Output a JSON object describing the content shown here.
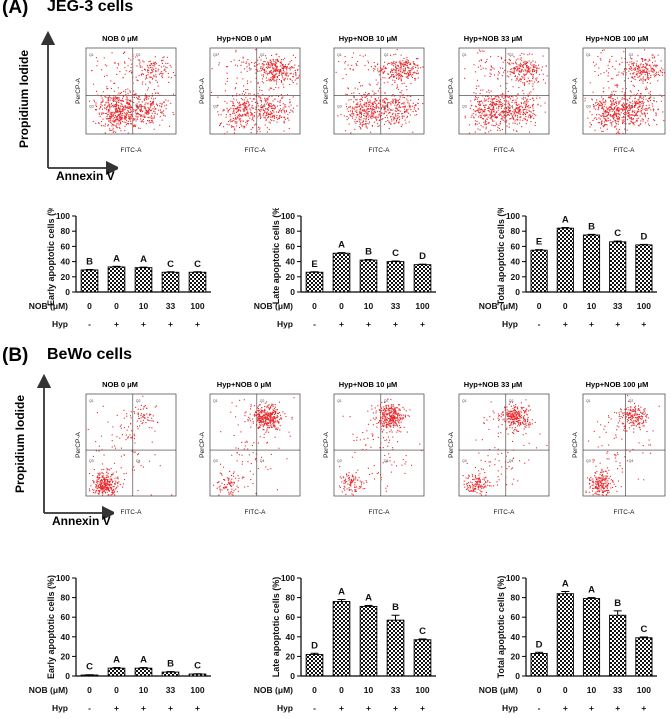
{
  "figure": {
    "panels": [
      {
        "letter": "(A)",
        "cell_line": "JEG-3 cells",
        "y_axis_name": "Propidium Iodide",
        "x_axis_name": "Annexin V",
        "flow_titles": [
          "NOB 0 μM",
          "Hyp+NOB 0 μM",
          "Hyp+NOB 10 μM",
          "Hyp+NOB 33 μM",
          "Hyp+NOB 100 μM"
        ],
        "flow_x_label": "FITC-A",
        "flow_y_label": "PerCP-A",
        "row_labels": {
          "nob": "NOB (μM)",
          "hyp": "Hyp"
        },
        "nob_values": [
          "0",
          "0",
          "10",
          "33",
          "100"
        ],
        "hyp_values": [
          "-",
          "+",
          "+",
          "+",
          "+"
        ]
      },
      {
        "letter": "(B)",
        "cell_line": "BeWo cells",
        "y_axis_name": "Propidium Iodide",
        "x_axis_name": "Annexin V",
        "flow_titles": [
          "NOB 0 μM",
          "Hyp+NOB 0 μM",
          "Hyp+NOB 10 μM",
          "Hyp+NOB 33 μM",
          "Hyp+NOB 100 μM"
        ],
        "flow_x_label": "FITC-A",
        "flow_y_label": "PerCP-A",
        "row_labels": {
          "nob": "NOB (μM)",
          "hyp": "Hyp"
        },
        "nob_values": [
          "0",
          "0",
          "10",
          "33",
          "100"
        ],
        "hyp_values": [
          "-",
          "+",
          "+",
          "+",
          "+"
        ]
      }
    ]
  },
  "chart_data": [
    {
      "type": "bar",
      "panel": "A",
      "ylabel": "Early apoptotic cells (%)",
      "ylim": [
        0,
        100
      ],
      "yticks": [
        "0",
        "20",
        "40",
        "60",
        "80",
        "100"
      ],
      "categories": [
        "0",
        "0",
        "10",
        "33",
        "100"
      ],
      "values": [
        29,
        33,
        32,
        26,
        26
      ],
      "errors": [
        0.6,
        0.8,
        0.7,
        0.6,
        0.6
      ],
      "letters": [
        "B",
        "A",
        "A",
        "C",
        "C"
      ]
    },
    {
      "type": "bar",
      "panel": "A",
      "ylabel": "Late apoptotic cells (%)",
      "ylim": [
        0,
        100
      ],
      "yticks": [
        "0",
        "20",
        "40",
        "60",
        "80",
        "100"
      ],
      "categories": [
        "0",
        "0",
        "10",
        "33",
        "100"
      ],
      "values": [
        26,
        51,
        42,
        40,
        36
      ],
      "errors": [
        0.6,
        0.8,
        0.7,
        0.8,
        0.6
      ],
      "letters": [
        "E",
        "A",
        "B",
        "C",
        "D"
      ]
    },
    {
      "type": "bar",
      "panel": "A",
      "ylabel": "Total apoptotic cells (%)",
      "ylim": [
        0,
        100
      ],
      "yticks": [
        "0",
        "20",
        "40",
        "60",
        "80",
        "100"
      ],
      "categories": [
        "0",
        "0",
        "10",
        "33",
        "100"
      ],
      "values": [
        55,
        84,
        75,
        66,
        62
      ],
      "errors": [
        0.7,
        0.8,
        0.8,
        1.0,
        0.6
      ],
      "letters": [
        "E",
        "A",
        "B",
        "C",
        "D"
      ]
    },
    {
      "type": "bar",
      "panel": "B",
      "ylabel": "Early apoptotic cells (%)",
      "ylim": [
        0,
        100
      ],
      "yticks": [
        "0",
        "20",
        "40",
        "60",
        "80",
        "100"
      ],
      "categories": [
        "0",
        "0",
        "10",
        "33",
        "100"
      ],
      "values": [
        1,
        8,
        8,
        4,
        2
      ],
      "errors": [
        0.3,
        0.6,
        0.6,
        0.5,
        0.3
      ],
      "letters": [
        "C",
        "A",
        "A",
        "B",
        "C"
      ]
    },
    {
      "type": "bar",
      "panel": "B",
      "ylabel": "Late apoptotic cells (%)",
      "ylim": [
        0,
        100
      ],
      "yticks": [
        "0",
        "20",
        "40",
        "60",
        "80",
        "100"
      ],
      "categories": [
        "0",
        "0",
        "10",
        "33",
        "100"
      ],
      "values": [
        22,
        76,
        71,
        57,
        37
      ],
      "errors": [
        1.2,
        2.0,
        1.0,
        5.0,
        0.8
      ],
      "letters": [
        "D",
        "A",
        "A",
        "B",
        "C"
      ]
    },
    {
      "type": "bar",
      "panel": "B",
      "ylabel": "Total apoptotic cells (%)",
      "ylim": [
        0,
        100
      ],
      "yticks": [
        "0",
        "20",
        "40",
        "60",
        "80",
        "100"
      ],
      "categories": [
        "0",
        "0",
        "10",
        "33",
        "100"
      ],
      "values": [
        23,
        84,
        79,
        62,
        39
      ],
      "errors": [
        1.2,
        2.2,
        1.0,
        4.5,
        0.8
      ],
      "letters": [
        "D",
        "A",
        "A",
        "B",
        "C"
      ]
    }
  ]
}
